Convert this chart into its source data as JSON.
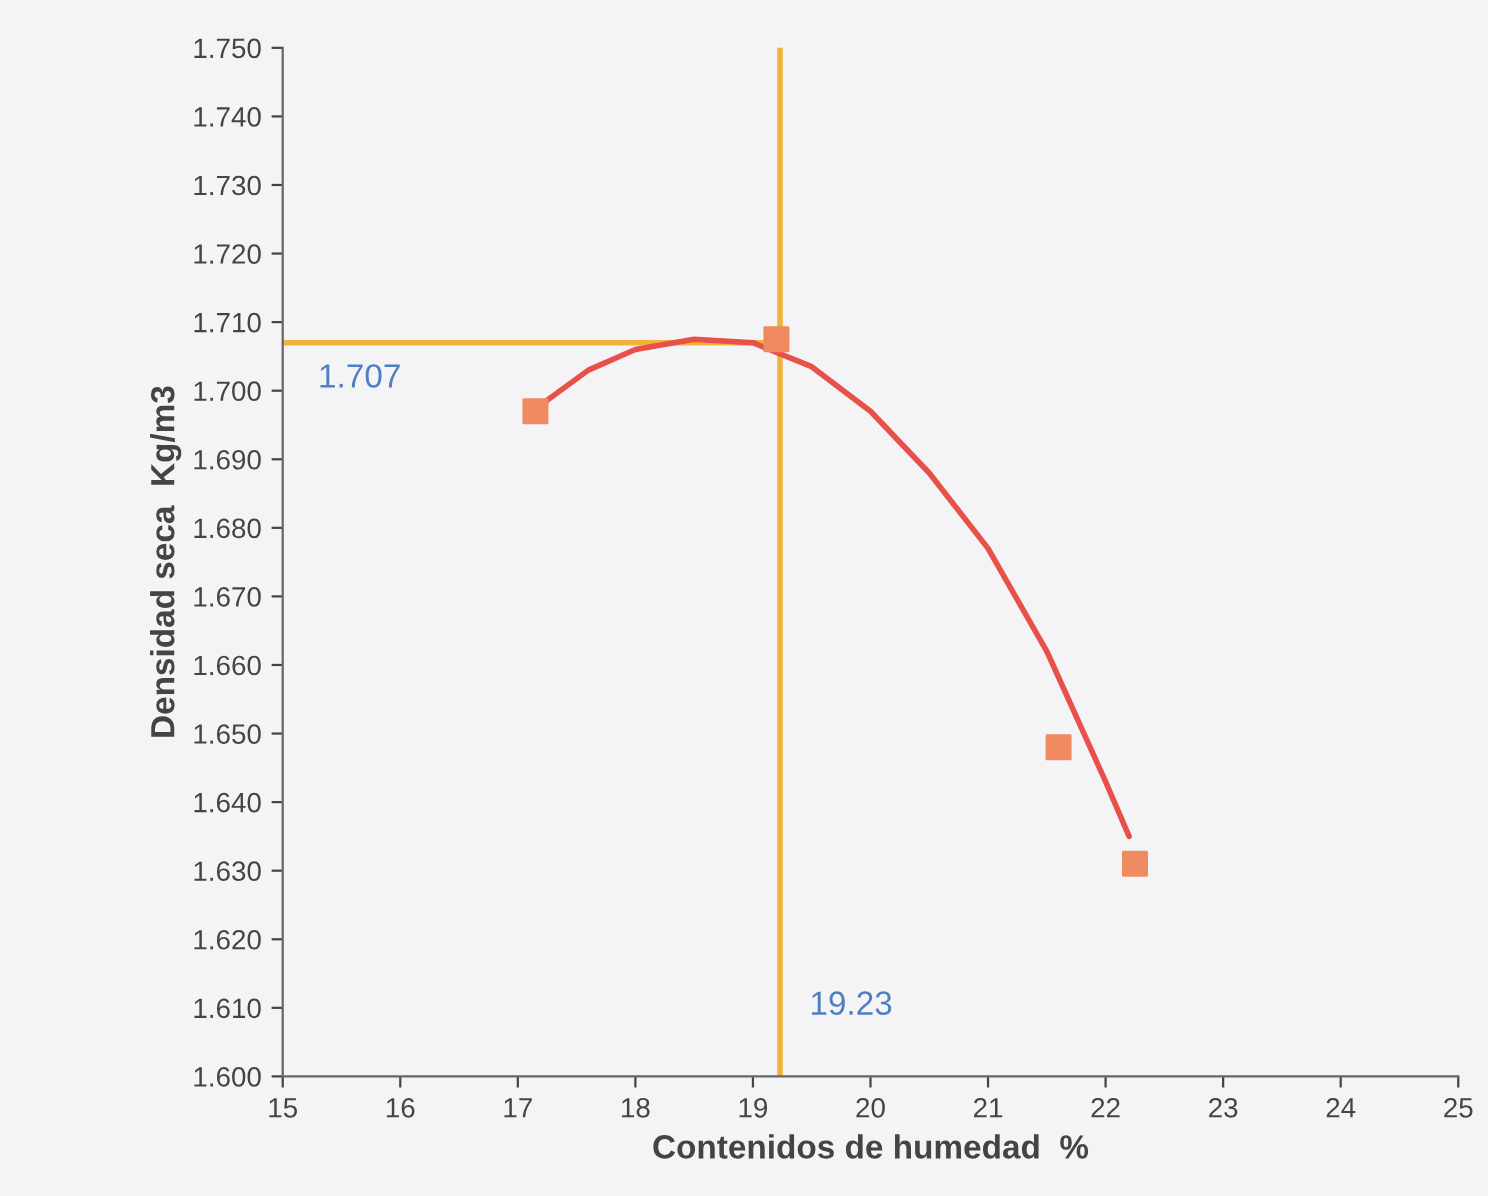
{
  "chart_data": {
    "type": "scatter",
    "xlabel": "Contenidos de humedad  %",
    "ylabel": "Densidad seca  Kg/m3",
    "xlim": [
      15,
      25
    ],
    "xticks": [
      15,
      16,
      17,
      18,
      19,
      20,
      21,
      22,
      23,
      24,
      25
    ],
    "ylim": [
      1.6,
      1.75
    ],
    "yticks": [
      {
        "value": 1.6,
        "label": "1.600"
      },
      {
        "value": 1.61,
        "label": "1.610"
      },
      {
        "value": 1.62,
        "label": "1.620"
      },
      {
        "value": 1.63,
        "label": "1.630"
      },
      {
        "value": 1.64,
        "label": "1.640"
      },
      {
        "value": 1.65,
        "label": "1.650"
      },
      {
        "value": 1.66,
        "label": "1.660"
      },
      {
        "value": 1.67,
        "label": "1.670"
      },
      {
        "value": 1.68,
        "label": "1.680"
      },
      {
        "value": 1.69,
        "label": "1.690"
      },
      {
        "value": 1.7,
        "label": "1.700"
      },
      {
        "value": 1.71,
        "label": "1.710"
      },
      {
        "value": 1.72,
        "label": "1.720"
      },
      {
        "value": 1.73,
        "label": "1.730"
      },
      {
        "value": 1.74,
        "label": "1.740"
      },
      {
        "value": 1.75,
        "label": "1.750"
      }
    ],
    "series": [
      {
        "color": "#f08a60",
        "marker": "square",
        "x": [
          17.15,
          19.2,
          21.6,
          22.25
        ],
        "values": [
          1.697,
          1.7075,
          1.648,
          1.631
        ]
      },
      {
        "type": "line",
        "color": "#e8504a",
        "marker": "none",
        "x": [
          17.2,
          17.6,
          18.0,
          18.5,
          19.0,
          19.5,
          20.0,
          20.5,
          21.0,
          21.5,
          22.0,
          22.2
        ],
        "values": [
          1.698,
          1.703,
          1.706,
          1.7075,
          1.707,
          1.7035,
          1.697,
          1.688,
          1.677,
          1.662,
          1.643,
          1.635
        ]
      }
    ],
    "ref_lines": [
      {
        "axis": "y",
        "value": 1.707,
        "label": "1.707",
        "color": "#f0b43c"
      },
      {
        "axis": "x",
        "value": 19.23,
        "label": "19.23",
        "color": "#f0b43c"
      }
    ]
  }
}
